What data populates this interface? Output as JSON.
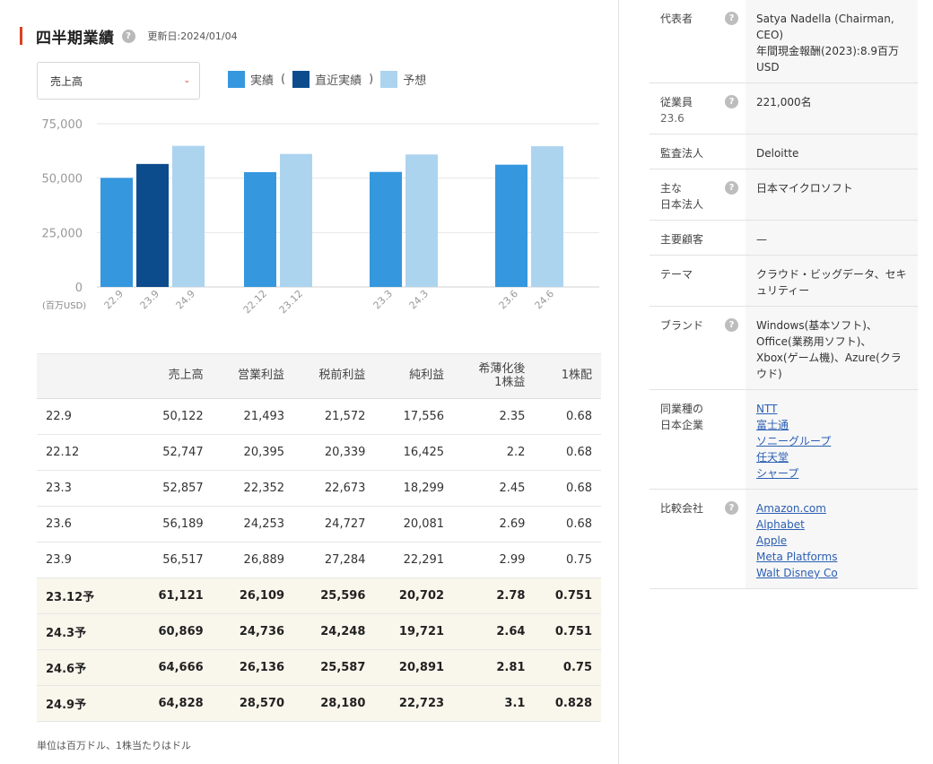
{
  "section": {
    "title": "四半期業績",
    "help": "?",
    "updated": "更新日:2024/01/04"
  },
  "metric_select": {
    "value": "売上高",
    "chevron": "⌄"
  },
  "legend": {
    "actual": "実績",
    "open_paren": "(",
    "recent": "直近実績",
    "close_paren": ")",
    "forecast": "予想"
  },
  "colors": {
    "actual": "#3597de",
    "recent": "#0c4c8c",
    "forecast": "#acd4ef",
    "accent": "#d9411e"
  },
  "chart_data": {
    "type": "bar",
    "unit": "(百万USD)",
    "ylim": [
      0,
      75000
    ],
    "yticks": [
      "0",
      "25,000",
      "50,000",
      "75,000"
    ],
    "ytick_values": [
      0,
      25000,
      50000,
      75000
    ],
    "groups": [
      {
        "bars": [
          {
            "label": "22.9",
            "value": 50122,
            "kind": "actual"
          },
          {
            "label": "23.9",
            "value": 56517,
            "kind": "recent"
          },
          {
            "label": "24.9",
            "value": 64828,
            "kind": "forecast"
          }
        ]
      },
      {
        "bars": [
          {
            "label": "22.12",
            "value": 52747,
            "kind": "actual"
          },
          {
            "label": "23.12",
            "value": 61121,
            "kind": "forecast"
          }
        ]
      },
      {
        "bars": [
          {
            "label": "23.3",
            "value": 52857,
            "kind": "actual"
          },
          {
            "label": "24.3",
            "value": 60869,
            "kind": "forecast"
          }
        ]
      },
      {
        "bars": [
          {
            "label": "23.6",
            "value": 56189,
            "kind": "actual"
          },
          {
            "label": "24.6",
            "value": 64666,
            "kind": "forecast"
          }
        ]
      }
    ]
  },
  "table": {
    "headers": [
      "",
      "売上高",
      "営業利益",
      "税前利益",
      "純利益",
      "希薄化後\n1株益",
      "1株配"
    ],
    "rows": [
      {
        "cells": [
          "22.9",
          "50,122",
          "21,493",
          "21,572",
          "17,556",
          "2.35",
          "0.68"
        ],
        "forecast": false
      },
      {
        "cells": [
          "22.12",
          "52,747",
          "20,395",
          "20,339",
          "16,425",
          "2.2",
          "0.68"
        ],
        "forecast": false
      },
      {
        "cells": [
          "23.3",
          "52,857",
          "22,352",
          "22,673",
          "18,299",
          "2.45",
          "0.68"
        ],
        "forecast": false
      },
      {
        "cells": [
          "23.6",
          "56,189",
          "24,253",
          "24,727",
          "20,081",
          "2.69",
          "0.68"
        ],
        "forecast": false
      },
      {
        "cells": [
          "23.9",
          "56,517",
          "26,889",
          "27,284",
          "22,291",
          "2.99",
          "0.75"
        ],
        "forecast": false
      },
      {
        "cells": [
          "23.12予",
          "61,121",
          "26,109",
          "25,596",
          "20,702",
          "2.78",
          "0.751"
        ],
        "forecast": true
      },
      {
        "cells": [
          "24.3予",
          "60,869",
          "24,736",
          "24,248",
          "19,721",
          "2.64",
          "0.751"
        ],
        "forecast": true
      },
      {
        "cells": [
          "24.6予",
          "64,666",
          "26,136",
          "25,587",
          "20,891",
          "2.81",
          "0.75"
        ],
        "forecast": true
      },
      {
        "cells": [
          "24.9予",
          "64,828",
          "28,570",
          "28,180",
          "22,723",
          "3.1",
          "0.828"
        ],
        "forecast": true
      }
    ],
    "note": "単位は百万ドル、1株当たりはドル"
  },
  "profile": [
    {
      "key": "representative",
      "label": "代表者",
      "help": true,
      "lines": [
        "Satya Nadella (Chairman, CEO)",
        "年間現金報酬(2023):8.9百万USD"
      ]
    },
    {
      "key": "employees",
      "label": "従業員",
      "sublabel": "23.6",
      "help": true,
      "lines": [
        "221,000名"
      ]
    },
    {
      "key": "auditor",
      "label": "監査法人",
      "help": false,
      "lines": [
        "Deloitte"
      ]
    },
    {
      "key": "japan-entity",
      "label": "主な\n日本法人",
      "help": true,
      "lines": [
        "日本マイクロソフト"
      ]
    },
    {
      "key": "major-customers",
      "label": "主要顧客",
      "help": false,
      "lines": [
        "—"
      ]
    },
    {
      "key": "theme",
      "label": "テーマ",
      "help": false,
      "lines": [
        "クラウド・ビッグデータ、セキュリティー"
      ]
    },
    {
      "key": "brand",
      "label": "ブランド",
      "help": true,
      "lines": [
        "Windows(基本ソフト)、Office(業務用ソフト)、Xbox(ゲーム機)、Azure(クラウド)"
      ]
    },
    {
      "key": "peers-japan",
      "label": "同業種の\n日本企業",
      "help": false,
      "links": [
        "NTT",
        "富士通",
        "ソニーグループ",
        "任天堂",
        "シャープ"
      ]
    },
    {
      "key": "comparison",
      "label": "比較会社",
      "help": true,
      "links": [
        "Amazon.com",
        "Alphabet",
        "Apple",
        "Meta Platforms",
        "Walt Disney Co"
      ]
    }
  ]
}
